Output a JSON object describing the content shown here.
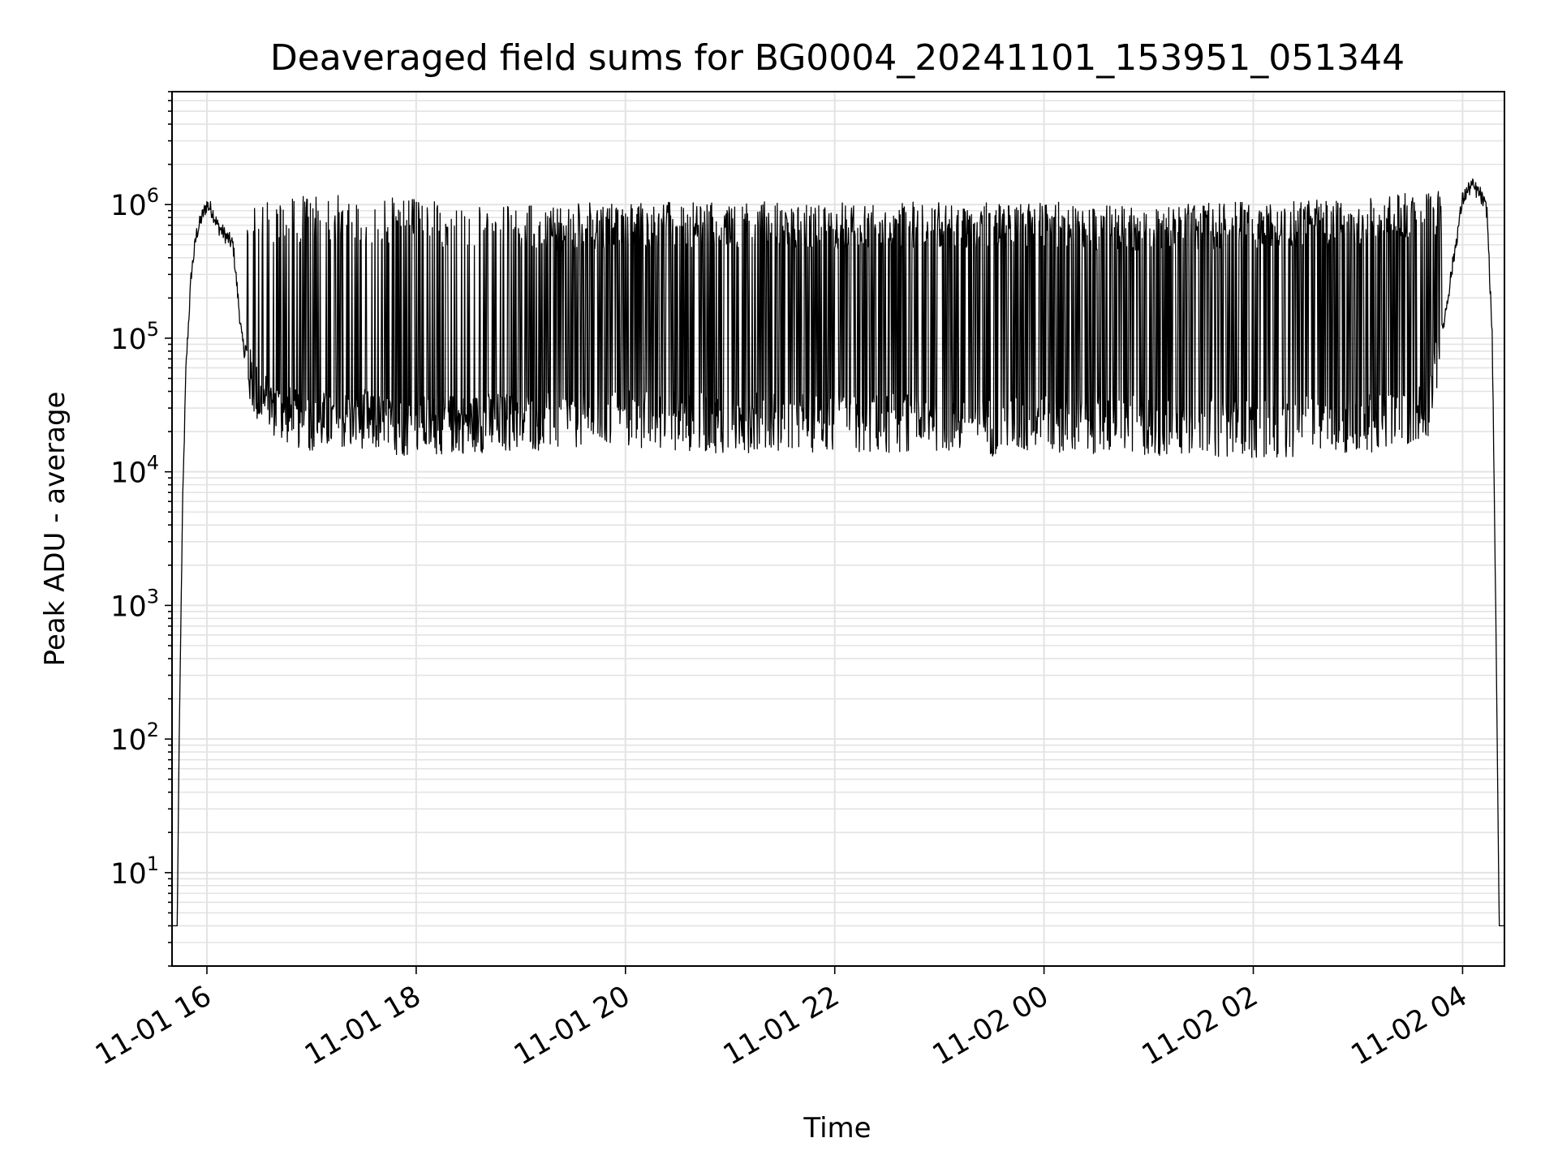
{
  "chart_data": {
    "type": "line",
    "title": "Deaveraged field sums for BG0004_20241101_153951_051344",
    "xlabel": "Time",
    "ylabel": "Peak ADU - average",
    "yscale": "log",
    "ylim": [
      2,
      7000000
    ],
    "xlim": [
      "2024-11-01 15:40",
      "2024-11-02 04:24"
    ],
    "grid": true,
    "x_ticks": [
      {
        "value": "2024-11-01 16:00",
        "label": "11-01 16"
      },
      {
        "value": "2024-11-01 18:00",
        "label": "11-01 18"
      },
      {
        "value": "2024-11-01 20:00",
        "label": "11-01 20"
      },
      {
        "value": "2024-11-01 22:00",
        "label": "11-01 22"
      },
      {
        "value": "2024-11-02 00:00",
        "label": "11-02 00"
      },
      {
        "value": "2024-11-02 02:00",
        "label": "11-02 02"
      },
      {
        "value": "2024-11-02 04:00",
        "label": "11-02 04"
      }
    ],
    "y_ticks": [
      {
        "value": 10,
        "base": "10",
        "exp": "1"
      },
      {
        "value": 100,
        "base": "10",
        "exp": "2"
      },
      {
        "value": 1000,
        "base": "10",
        "exp": "3"
      },
      {
        "value": 10000,
        "base": "10",
        "exp": "4"
      },
      {
        "value": 100000,
        "base": "10",
        "exp": "5"
      },
      {
        "value": 1000000,
        "base": "10",
        "exp": "6"
      }
    ],
    "line_color": "#000000",
    "series": [
      {
        "x": [
          "2024-11-01 15:40",
          "2024-11-01 15:43",
          "2024-11-01 15:44",
          "2024-11-01 15:46",
          "2024-11-01 15:48",
          "2024-11-01 15:51",
          "2024-11-01 15:54",
          "2024-11-01 15:57",
          "2024-11-01 16:00",
          "2024-11-01 16:03",
          "2024-11-01 16:06",
          "2024-11-01 16:10",
          "2024-11-01 16:15",
          "2024-11-01 16:20",
          "2024-11-01 16:25",
          "2024-11-01 16:30",
          "2024-11-01 16:40",
          "2024-11-01 16:50",
          "2024-11-01 17:00",
          "2024-11-01 17:15",
          "2024-11-01 17:30",
          "2024-11-01 17:45",
          "2024-11-01 18:00",
          "2024-11-01 18:30",
          "2024-11-01 19:00",
          "2024-11-01 19:30",
          "2024-11-01 20:00",
          "2024-11-01 20:30",
          "2024-11-01 21:00",
          "2024-11-01 21:30",
          "2024-11-01 22:00",
          "2024-11-01 22:30",
          "2024-11-01 23:00",
          "2024-11-01 23:30",
          "2024-11-02 00:00",
          "2024-11-02 00:30",
          "2024-11-02 01:00",
          "2024-11-02 01:30",
          "2024-11-02 02:00",
          "2024-11-02 02:30",
          "2024-11-02 03:00",
          "2024-11-02 03:20",
          "2024-11-02 03:40",
          "2024-11-02 03:50",
          "2024-11-02 04:00",
          "2024-11-02 04:05",
          "2024-11-02 04:10",
          "2024-11-02 04:14",
          "2024-11-02 04:17",
          "2024-11-02 04:19",
          "2024-11-02 04:21",
          "2024-11-02 04:24"
        ],
        "y": [
          4,
          4,
          80,
          5000,
          60000,
          300000,
          600000,
          800000,
          1000000,
          900000,
          700000,
          600000,
          500000,
          100000,
          50000,
          35000,
          30000,
          25000,
          24000,
          24000,
          25000,
          22000,
          22000,
          23000,
          24000,
          24000,
          25000,
          24000,
          23000,
          24000,
          23000,
          23000,
          24000,
          22000,
          22000,
          23000,
          22000,
          22000,
          21000,
          22000,
          23000,
          24000,
          30000,
          150000,
          1100000,
          1400000,
          1200000,
          900000,
          100000,
          1000,
          4,
          4
        ],
        "upper_envelope": [
          1000000,
          1200000,
          1100000,
          1000000,
          1050000,
          1050000,
          1050000,
          1050000,
          1050000,
          1000000,
          1050000,
          1100000,
          1300000,
          1400000
        ],
        "upper_envelope_x": [
          "2024-11-01 16:20",
          "2024-11-01 17:00",
          "2024-11-01 18:00",
          "2024-11-01 19:00",
          "2024-11-01 20:00",
          "2024-11-01 21:00",
          "2024-11-01 22:00",
          "2024-11-01 23:00",
          "2024-11-02 00:00",
          "2024-11-02 01:00",
          "2024-11-02 02:00",
          "2024-11-02 03:00",
          "2024-11-02 03:40",
          "2024-11-02 04:00"
        ]
      }
    ]
  }
}
